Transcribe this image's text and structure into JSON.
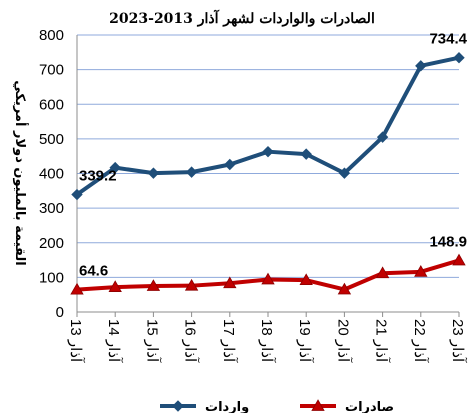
{
  "chart_data": {
    "type": "line",
    "title": "الصادرات والواردات لشهر آذار 2013-2023",
    "ylabel": "القيمة بالمليون دولار أمريكي",
    "xlabel": "",
    "ylim": [
      0,
      800
    ],
    "y_ticks": [
      0,
      100,
      200,
      300,
      400,
      500,
      600,
      700,
      800
    ],
    "categories": [
      "آذار 13",
      "آذار 14",
      "آذار 15",
      "آذار 16",
      "آذار 17",
      "آذار 18",
      "آذار 19",
      "آذار 20",
      "آذار 21",
      "آذار 22",
      "آذار 23"
    ],
    "grid": true,
    "legend_position": "bottom",
    "series": [
      {
        "name": "واردات",
        "color": "#1f4e79",
        "marker": "diamond",
        "values": [
          339.2,
          417,
          401,
          404,
          426,
          463,
          456,
          401,
          505,
          711,
          734.4
        ],
        "data_labels": [
          {
            "index": 0,
            "text": "339.2"
          },
          {
            "index": 10,
            "text": "734.4"
          }
        ]
      },
      {
        "name": "صادرات",
        "color": "#c00000",
        "marker": "triangle",
        "values": [
          64.6,
          72,
          75,
          76,
          83,
          94,
          92,
          65,
          112,
          116,
          148.9
        ],
        "data_labels": [
          {
            "index": 0,
            "text": "64.6"
          },
          {
            "index": 10,
            "text": "148.9"
          }
        ]
      }
    ]
  }
}
